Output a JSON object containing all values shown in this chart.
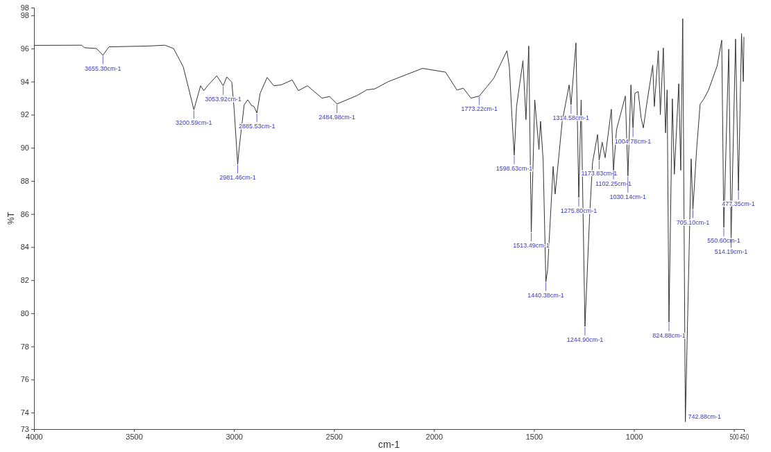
{
  "chart_data": {
    "type": "line",
    "xlabel": "cm-1",
    "ylabel": "%T",
    "xlim": [
      4000,
      450
    ],
    "ylim": [
      73,
      98.47
    ],
    "xticks": [
      4000,
      3500,
      3000,
      2500,
      2000,
      1500,
      1000,
      500,
      450
    ],
    "yticks": [
      73,
      74,
      76,
      78,
      80,
      82,
      84,
      86,
      88,
      90,
      92,
      94,
      96,
      98,
      {
        "value": 98.47,
        "label": "98"
      }
    ],
    "grid": false,
    "marker": "none",
    "line_style": "solid",
    "series": [
      {
        "color": "#333333",
        "x": [
          4000,
          3761,
          3749,
          3688,
          3655.3,
          3625,
          3427,
          3346,
          3302,
          3254,
          3229,
          3200.59,
          3167,
          3151,
          3132,
          3086,
          3053.92,
          3036,
          3011,
          2999,
          2981.46,
          2974,
          2949,
          2931,
          2912,
          2900,
          2885.53,
          2869,
          2834,
          2801,
          2764,
          2709,
          2678,
          2633,
          2560,
          2522,
          2484.98,
          2386,
          2336,
          2296,
          2228,
          2057,
          1942,
          1885,
          1853,
          1815,
          1773.22,
          1701,
          1635,
          1623,
          1610,
          1598.63,
          1587,
          1555,
          1540,
          1526,
          1513.49,
          1496,
          1475,
          1467,
          1454,
          1440.38,
          1432,
          1404,
          1394,
          1359,
          1324,
          1314.58,
          1290,
          1275.8,
          1264,
          1244.9,
          1222,
          1207,
          1182,
          1173.83,
          1159,
          1144,
          1113,
          1102.25,
          1087,
          1043,
          1030.14,
          1015,
          1004.78,
          995,
          979,
          964,
          953,
          936,
          906,
          898,
          878,
          868,
          853,
          842,
          834,
          824.88,
          808,
          798,
          776,
          766,
          756,
          742.88,
          714,
          705.1,
          686,
          669,
          650,
          627,
          584,
          561,
          550.6,
          526,
          514.19,
          492,
          477.35,
          462,
          453,
          450
        ],
        "values": [
          96.19,
          96.2,
          96.05,
          96.0,
          95.6,
          96.1,
          96.15,
          96.2,
          96.0,
          94.9,
          93.7,
          92.3,
          93.75,
          93.45,
          93.75,
          94.35,
          93.75,
          94.28,
          93.97,
          92.3,
          89.0,
          90.0,
          92.6,
          92.9,
          92.55,
          92.5,
          92.1,
          93.3,
          94.25,
          93.75,
          93.8,
          94.1,
          93.45,
          93.75,
          93.0,
          93.1,
          92.65,
          93.15,
          93.5,
          93.56,
          94.0,
          94.8,
          94.57,
          93.49,
          93.6,
          93.0,
          93.13,
          94.2,
          95.87,
          94.87,
          91.87,
          89.56,
          92.5,
          95.26,
          91.7,
          96.15,
          84.9,
          92.9,
          89.9,
          91.6,
          89.25,
          81.9,
          82.6,
          88.87,
          87.2,
          91.57,
          93.8,
          92.6,
          96.34,
          87.0,
          92.9,
          79.2,
          85.8,
          89.1,
          90.8,
          89.25,
          90.34,
          89.4,
          92.33,
          88.64,
          91.1,
          93.13,
          88.3,
          93.8,
          91.2,
          93.3,
          93.4,
          91.8,
          91.2,
          92.64,
          95.0,
          92.5,
          95.87,
          92.0,
          96.03,
          90.9,
          93.5,
          79.46,
          92.96,
          88.4,
          93.87,
          88.64,
          97.8,
          73.44,
          89.33,
          86.3,
          90.0,
          92.64,
          92.96,
          93.49,
          94.95,
          96.5,
          85.2,
          95.96,
          84.5,
          96.57,
          87.4,
          96.9,
          94.0,
          96.7
        ]
      }
    ],
    "annotations": [
      {
        "text": "3655.30cm-1",
        "x": 3655.3,
        "y": 95.6
      },
      {
        "text": "3200.59cm-1",
        "x": 3200.59,
        "y": 92.3
      },
      {
        "text": "3053.92cm-1",
        "x": 3053.92,
        "y": 93.75
      },
      {
        "text": "2981.46cm-1",
        "x": 2981.46,
        "y": 89.0
      },
      {
        "text": "2885.53cm-1",
        "x": 2885.53,
        "y": 92.1
      },
      {
        "text": "2484.98cm-1",
        "x": 2484.98,
        "y": 92.65
      },
      {
        "text": "1773.22cm-1",
        "x": 1773.22,
        "y": 93.13
      },
      {
        "text": "1598.63cm-1",
        "x": 1598.63,
        "y": 89.56
      },
      {
        "text": "1513.49cm-1",
        "x": 1513.49,
        "y": 84.9
      },
      {
        "text": "1440.38cm-1",
        "x": 1440.38,
        "y": 81.9
      },
      {
        "text": "1314.58cm-1",
        "x": 1314.58,
        "y": 92.6
      },
      {
        "text": "1275.80cm-1",
        "x": 1275.8,
        "y": 87.0
      },
      {
        "text": "1244.90cm-1",
        "x": 1244.9,
        "y": 79.2
      },
      {
        "text": "1173.83cm-1",
        "x": 1173.83,
        "y": 89.25
      },
      {
        "text": "1102.25cm-1",
        "x": 1102.25,
        "y": 88.64
      },
      {
        "text": "1030.14cm-1",
        "x": 1030.14,
        "y": 88.3
      },
      {
        "text": "1004.78cm-1",
        "x": 1004.78,
        "y": 91.2
      },
      {
        "text": "824.88cm-1",
        "x": 824.88,
        "y": 79.46
      },
      {
        "text": "742.88cm-1",
        "x": 742.88,
        "y": 73.44
      },
      {
        "text": "705.10cm-1",
        "x": 705.1,
        "y": 86.3
      },
      {
        "text": "550.60cm-1",
        "x": 550.6,
        "y": 85.2
      },
      {
        "text": "514.19cm-1",
        "x": 514.19,
        "y": 84.5
      },
      {
        "text": "477.35cm-1",
        "x": 477.35,
        "y": 87.4
      }
    ]
  }
}
